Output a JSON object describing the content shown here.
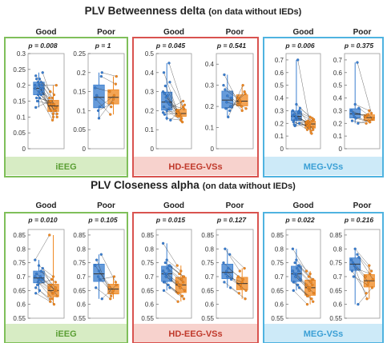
{
  "colors": {
    "blue": "#3b7fd0",
    "orange": "#f08a24",
    "green_border": "#7fbf5a",
    "green_fill": "#d7ecc4",
    "green_text": "#5a9e33",
    "red_border": "#d9534f",
    "red_fill": "#f7d2cd",
    "red_text": "#c0392b",
    "cyan_border": "#4fb3e0",
    "cyan_fill": "#cdeaf8",
    "cyan_text": "#3a9fd5"
  },
  "chart_data": [
    {
      "type": "box-paired",
      "title": "PLV Betweenness delta",
      "subtitle": "(on data without IEDs)",
      "modalities": [
        {
          "name": "iEEG",
          "theme": "green",
          "panels": [
            {
              "group": "Good",
              "p_text": "p = 0.008",
              "ylim": [
                0,
                0.3
              ],
              "ticks": [
                "0",
                "0.05",
                "0.1",
                "0.15",
                "0.2",
                "0.25",
                "0.3"
              ],
              "tick_values": [
                0,
                0.05,
                0.1,
                0.15,
                0.2,
                0.25,
                0.3
              ],
              "pre": [
                0.19,
                0.21,
                0.17,
                0.23,
                0.2,
                0.18,
                0.16,
                0.22,
                0.24,
                0.15,
                0.19,
                0.2,
                0.17,
                0.21,
                0.13,
                0.18,
                0.2,
                0.22,
                0.16,
                0.19
              ],
              "post": [
                0.14,
                0.16,
                0.12,
                0.18,
                0.1,
                0.13,
                0.15,
                0.17,
                0.11,
                0.14,
                0.12,
                0.16,
                0.09,
                0.13,
                0.15,
                0.11,
                0.2,
                0.12,
                0.14,
                0.1
              ]
            },
            {
              "group": "Poor",
              "p_text": "p = 1",
              "ylim": [
                0,
                0.25
              ],
              "ticks": [
                "0",
                "0.05",
                "0.1",
                "0.15",
                "0.2",
                "0.25"
              ],
              "tick_values": [
                0,
                0.05,
                0.1,
                0.15,
                0.2,
                0.25
              ],
              "pre": [
                0.16,
                0.1,
                0.19,
                0.13,
                0.08,
                0.2,
                0.14,
                0.11
              ],
              "post": [
                0.15,
                0.12,
                0.17,
                0.09,
                0.13,
                0.19,
                0.11,
                0.14
              ]
            }
          ]
        },
        {
          "name": "HD-EEG-VSs",
          "theme": "red",
          "panels": [
            {
              "group": "Good",
              "p_text": "p = 0.045",
              "ylim": [
                0,
                0.5
              ],
              "ticks": [
                "0",
                "0.1",
                "0.2",
                "0.3",
                "0.4",
                "0.5"
              ],
              "tick_values": [
                0,
                0.1,
                0.2,
                0.3,
                0.4,
                0.5
              ],
              "pre": [
                0.3,
                0.25,
                0.45,
                0.22,
                0.2,
                0.35,
                0.18,
                0.28,
                0.15,
                0.33,
                0.24,
                0.19,
                0.27,
                0.21,
                0.4,
                0.16,
                0.23,
                0.29
              ],
              "post": [
                0.2,
                0.18,
                0.22,
                0.17,
                0.15,
                0.21,
                0.19,
                0.16,
                0.23,
                0.18,
                0.14,
                0.2,
                0.17,
                0.25,
                0.19,
                0.15,
                0.21,
                0.18
              ]
            },
            {
              "group": "Poor",
              "p_text": "p = 0.541",
              "ylim": [
                0,
                0.45
              ],
              "ticks": [
                "0",
                "0.1",
                "0.2",
                "0.3",
                "0.4"
              ],
              "tick_values": [
                0,
                0.1,
                0.2,
                0.3,
                0.4
              ],
              "pre": [
                0.3,
                0.22,
                0.18,
                0.35,
                0.25,
                0.2,
                0.28,
                0.15,
                0.24,
                0.19
              ],
              "post": [
                0.24,
                0.2,
                0.27,
                0.21,
                0.18,
                0.26,
                0.23,
                0.3,
                0.19,
                0.22
              ]
            }
          ]
        },
        {
          "name": "MEG-VSs",
          "theme": "cyan",
          "panels": [
            {
              "group": "Good",
              "p_text": "p = 0.006",
              "ylim": [
                0,
                0.75
              ],
              "ticks": [
                "0",
                "0.1",
                "0.2",
                "0.3",
                "0.4",
                "0.5",
                "0.6",
                "0.7"
              ],
              "tick_values": [
                0,
                0.1,
                0.2,
                0.3,
                0.4,
                0.5,
                0.6,
                0.7
              ],
              "pre": [
                0.3,
                0.25,
                0.28,
                0.22,
                0.35,
                0.2,
                0.27,
                0.24,
                0.32,
                0.18,
                0.7,
                0.26,
                0.23,
                0.29,
                0.21,
                0.25,
                0.3,
                0.19
              ],
              "post": [
                0.2,
                0.18,
                0.22,
                0.15,
                0.25,
                0.17,
                0.2,
                0.14,
                0.23,
                0.19,
                0.12,
                0.21,
                0.16,
                0.24,
                0.18,
                0.2,
                0.15,
                0.22
              ]
            },
            {
              "group": "Poor",
              "p_text": "p = 0.375",
              "ylim": [
                0,
                0.75
              ],
              "ticks": [
                "0",
                "0.1",
                "0.2",
                "0.3",
                "0.4",
                "0.5",
                "0.6",
                "0.7"
              ],
              "tick_values": [
                0,
                0.1,
                0.2,
                0.3,
                0.4,
                0.5,
                0.6,
                0.7
              ],
              "pre": [
                0.3,
                0.25,
                0.68,
                0.22,
                0.35,
                0.2,
                0.28,
                0.24,
                0.32,
                0.27
              ],
              "post": [
                0.25,
                0.22,
                0.28,
                0.2,
                0.3,
                0.23,
                0.26,
                0.21,
                0.24,
                0.27
              ]
            }
          ]
        }
      ]
    },
    {
      "type": "box-paired",
      "title": "PLV Closeness alpha",
      "subtitle": "(on data without IEDs)",
      "modalities": [
        {
          "name": "iEEG",
          "theme": "green",
          "panels": [
            {
              "group": "Good",
              "p_text": "p = 0.010",
              "ylim": [
                0.55,
                0.87
              ],
              "ticks": [
                "0.55",
                "0.6",
                "0.65",
                "0.7",
                "0.75",
                "0.8",
                "0.85"
              ],
              "tick_values": [
                0.55,
                0.6,
                0.65,
                0.7,
                0.75,
                0.8,
                0.85
              ],
              "pre": [
                0.7,
                0.68,
                0.72,
                0.66,
                0.74,
                0.69,
                0.71,
                0.65,
                0.73,
                0.67,
                0.7,
                0.76,
                0.68,
                0.72,
                0.64,
                0.69
              ],
              "post": [
                0.66,
                0.64,
                0.68,
                0.62,
                0.7,
                0.65,
                0.67,
                0.6,
                0.63,
                0.69,
                0.65,
                0.85,
                0.62,
                0.66,
                0.61,
                0.64
              ]
            },
            {
              "group": "Poor",
              "p_text": "p = 0.105",
              "ylim": [
                0.55,
                0.87
              ],
              "ticks": [
                "0.55",
                "0.6",
                "0.65",
                "0.7",
                "0.75",
                "0.8",
                "0.85"
              ],
              "tick_values": [
                0.55,
                0.6,
                0.65,
                0.7,
                0.75,
                0.8,
                0.85
              ],
              "pre": [
                0.74,
                0.7,
                0.78,
                0.66,
                0.72,
                0.62,
                0.76,
                0.69
              ],
              "post": [
                0.66,
                0.64,
                0.68,
                0.62,
                0.65,
                0.67,
                0.63,
                0.7
              ]
            }
          ]
        },
        {
          "name": "HD-EEG-VSs",
          "theme": "red",
          "panels": [
            {
              "group": "Good",
              "p_text": "p = 0.015",
              "ylim": [
                0.55,
                0.87
              ],
              "ticks": [
                "0.55",
                "0.6",
                "0.65",
                "0.7",
                "0.75",
                "0.8",
                "0.85"
              ],
              "tick_values": [
                0.55,
                0.6,
                0.65,
                0.7,
                0.75,
                0.8,
                0.85
              ],
              "pre": [
                0.72,
                0.7,
                0.74,
                0.68,
                0.76,
                0.66,
                0.71,
                0.73,
                0.69,
                0.75,
                0.67,
                0.82,
                0.7,
                0.72,
                0.65,
                0.71,
                0.74,
                0.68
              ],
              "post": [
                0.68,
                0.66,
                0.7,
                0.64,
                0.72,
                0.62,
                0.67,
                0.69,
                0.65,
                0.71,
                0.63,
                0.74,
                0.66,
                0.68,
                0.61,
                0.67,
                0.7,
                0.64
              ]
            },
            {
              "group": "Poor",
              "p_text": "p = 0.127",
              "ylim": [
                0.55,
                0.87
              ],
              "ticks": [
                "0.55",
                "0.6",
                "0.65",
                "0.7",
                "0.75",
                "0.8",
                "0.85"
              ],
              "tick_values": [
                0.55,
                0.6,
                0.65,
                0.7,
                0.75,
                0.8,
                0.85
              ],
              "pre": [
                0.75,
                0.72,
                0.78,
                0.68,
                0.7,
                0.66,
                0.8,
                0.73,
                0.69,
                0.71
              ],
              "post": [
                0.7,
                0.66,
                0.73,
                0.64,
                0.68,
                0.62,
                0.72,
                0.69,
                0.65,
                0.67
              ]
            }
          ]
        },
        {
          "name": "MEG-VSs",
          "theme": "cyan",
          "panels": [
            {
              "group": "Good",
              "p_text": "p = 0.022",
              "ylim": [
                0.55,
                0.87
              ],
              "ticks": [
                "0.55",
                "0.6",
                "0.65",
                "0.7",
                "0.75",
                "0.8",
                "0.85"
              ],
              "tick_values": [
                0.55,
                0.6,
                0.65,
                0.7,
                0.75,
                0.8,
                0.85
              ],
              "pre": [
                0.72,
                0.7,
                0.74,
                0.68,
                0.76,
                0.66,
                0.71,
                0.73,
                0.69,
                0.75,
                0.67,
                0.8,
                0.7,
                0.72,
                0.65,
                0.71,
                0.74,
                0.68
              ],
              "post": [
                0.67,
                0.65,
                0.69,
                0.63,
                0.71,
                0.61,
                0.66,
                0.68,
                0.64,
                0.7,
                0.62,
                0.72,
                0.65,
                0.67,
                0.6,
                0.66,
                0.69,
                0.63
              ]
            },
            {
              "group": "Poor",
              "p_text": "p = 0.216",
              "ylim": [
                0.55,
                0.87
              ],
              "ticks": [
                "0.55",
                "0.6",
                "0.65",
                "0.7",
                "0.75",
                "0.8",
                "0.85"
              ],
              "tick_values": [
                0.55,
                0.6,
                0.65,
                0.7,
                0.75,
                0.8,
                0.85
              ],
              "pre": [
                0.76,
                0.74,
                0.78,
                0.72,
                0.8,
                0.6,
                0.75,
                0.73,
                0.77,
                0.7
              ],
              "post": [
                0.7,
                0.68,
                0.72,
                0.64,
                0.74,
                0.66,
                0.62,
                0.71,
                0.69,
                0.67
              ]
            }
          ]
        }
      ]
    }
  ]
}
